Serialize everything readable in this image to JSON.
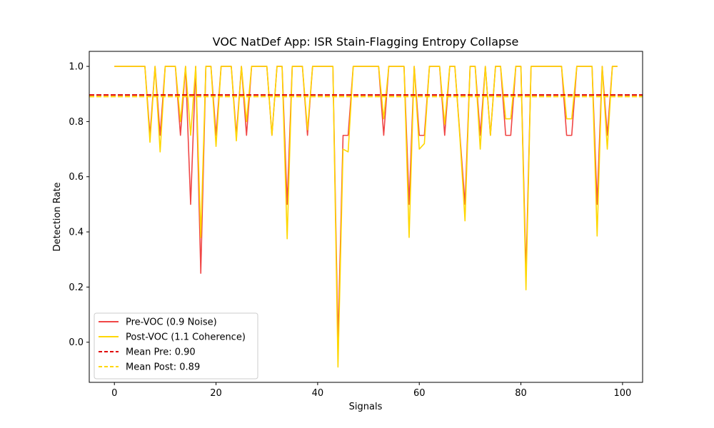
{
  "chart_data": {
    "type": "line",
    "title": "VOC NatDef App: ISR Stain-Flagging Entropy Collapse",
    "xlabel": "Signals",
    "ylabel": "Detection Rate",
    "xlim": [
      -4.95,
      103.95
    ],
    "ylim": [
      -0.1455,
      1.0545
    ],
    "xticks": [
      0,
      20,
      40,
      60,
      80,
      100
    ],
    "yticks": [
      0.0,
      0.2,
      0.4,
      0.6,
      0.8,
      1.0
    ],
    "ytick_labels": [
      "0.0",
      "0.2",
      "0.4",
      "0.6",
      "0.8",
      "1.0"
    ],
    "grid": false,
    "legend_position": "lower-left",
    "series": [
      {
        "name": "Pre-VOC (0.9 Noise)",
        "color": "#f04646",
        "style": "solid",
        "x": [
          0,
          1,
          2,
          3,
          4,
          5,
          6,
          7,
          8,
          9,
          10,
          11,
          12,
          13,
          14,
          15,
          16,
          17,
          18,
          19,
          20,
          21,
          22,
          23,
          24,
          25,
          26,
          27,
          28,
          29,
          30,
          31,
          32,
          33,
          34,
          35,
          36,
          37,
          38,
          39,
          40,
          41,
          42,
          43,
          44,
          45,
          46,
          47,
          48,
          49,
          50,
          51,
          52,
          53,
          54,
          55,
          56,
          57,
          58,
          59,
          60,
          61,
          62,
          63,
          64,
          65,
          66,
          67,
          68,
          69,
          70,
          71,
          72,
          73,
          74,
          75,
          76,
          77,
          78,
          79,
          80,
          81,
          82,
          83,
          84,
          85,
          86,
          87,
          88,
          89,
          90,
          91,
          92,
          93,
          94,
          95,
          96,
          97,
          98,
          99
        ],
        "values": [
          1.0,
          1.0,
          1.0,
          1.0,
          1.0,
          1.0,
          1.0,
          0.75,
          1.0,
          0.75,
          1.0,
          1.0,
          1.0,
          0.75,
          1.0,
          0.5,
          1.0,
          0.25,
          1.0,
          1.0,
          0.75,
          1.0,
          1.0,
          1.0,
          0.75,
          1.0,
          0.75,
          1.0,
          1.0,
          1.0,
          1.0,
          0.75,
          1.0,
          1.0,
          0.5,
          1.0,
          1.0,
          1.0,
          0.75,
          1.0,
          1.0,
          1.0,
          1.0,
          1.0,
          0.0,
          0.75,
          0.75,
          1.0,
          1.0,
          1.0,
          1.0,
          1.0,
          1.0,
          0.75,
          1.0,
          1.0,
          1.0,
          1.0,
          0.5,
          1.0,
          0.75,
          0.75,
          1.0,
          1.0,
          1.0,
          0.75,
          1.0,
          1.0,
          0.75,
          0.5,
          1.0,
          1.0,
          0.75,
          1.0,
          0.75,
          1.0,
          1.0,
          0.75,
          0.75,
          1.0,
          1.0,
          0.25,
          1.0,
          1.0,
          1.0,
          1.0,
          1.0,
          1.0,
          1.0,
          0.75,
          0.75,
          1.0,
          1.0,
          1.0,
          1.0,
          0.5,
          1.0,
          0.75,
          1.0,
          1.0
        ]
      },
      {
        "name": "Post-VOC (1.1 Coherence)",
        "color": "#ffd700",
        "style": "solid",
        "x": [
          0,
          1,
          2,
          3,
          4,
          5,
          6,
          7,
          8,
          9,
          10,
          11,
          12,
          13,
          14,
          15,
          16,
          17,
          18,
          19,
          20,
          21,
          22,
          23,
          24,
          25,
          26,
          27,
          28,
          29,
          30,
          31,
          32,
          33,
          34,
          35,
          36,
          37,
          38,
          39,
          40,
          41,
          42,
          43,
          44,
          45,
          46,
          47,
          48,
          49,
          50,
          51,
          52,
          53,
          54,
          55,
          56,
          57,
          58,
          59,
          60,
          61,
          62,
          63,
          64,
          65,
          66,
          67,
          68,
          69,
          70,
          71,
          72,
          73,
          74,
          75,
          76,
          77,
          78,
          79,
          80,
          81,
          82,
          83,
          84,
          85,
          86,
          87,
          88,
          89,
          90,
          91,
          92,
          93,
          94,
          95,
          96,
          97,
          98,
          99
        ],
        "values": [
          1.0,
          1.0,
          1.0,
          1.0,
          1.0,
          1.0,
          1.0,
          0.725,
          1.0,
          0.69,
          1.0,
          1.0,
          1.0,
          0.8,
          1.0,
          0.75,
          1.0,
          0.38,
          1.0,
          1.0,
          0.71,
          1.0,
          1.0,
          1.0,
          0.73,
          1.0,
          0.8,
          1.0,
          1.0,
          1.0,
          1.0,
          0.75,
          1.0,
          1.0,
          0.375,
          1.0,
          1.0,
          1.0,
          0.77,
          1.0,
          1.0,
          1.0,
          1.0,
          1.0,
          -0.09,
          0.7,
          0.69,
          1.0,
          1.0,
          1.0,
          1.0,
          1.0,
          1.0,
          0.81,
          1.0,
          1.0,
          1.0,
          1.0,
          0.38,
          1.0,
          0.7,
          0.72,
          1.0,
          1.0,
          1.0,
          0.79,
          1.0,
          1.0,
          0.74,
          0.44,
          1.0,
          1.0,
          0.7,
          1.0,
          0.75,
          1.0,
          1.0,
          0.81,
          0.81,
          1.0,
          1.0,
          0.19,
          1.0,
          1.0,
          1.0,
          1.0,
          1.0,
          1.0,
          1.0,
          0.81,
          0.81,
          1.0,
          1.0,
          1.0,
          1.0,
          0.385,
          1.0,
          0.7,
          1.0,
          1.0
        ]
      },
      {
        "name": "Mean Pre: 0.90",
        "color": "#e00000",
        "style": "dashed",
        "hline": 0.8965
      },
      {
        "name": "Mean Post: 0.89",
        "color": "#ffd700",
        "style": "dashed",
        "hline": 0.8905
      }
    ]
  }
}
